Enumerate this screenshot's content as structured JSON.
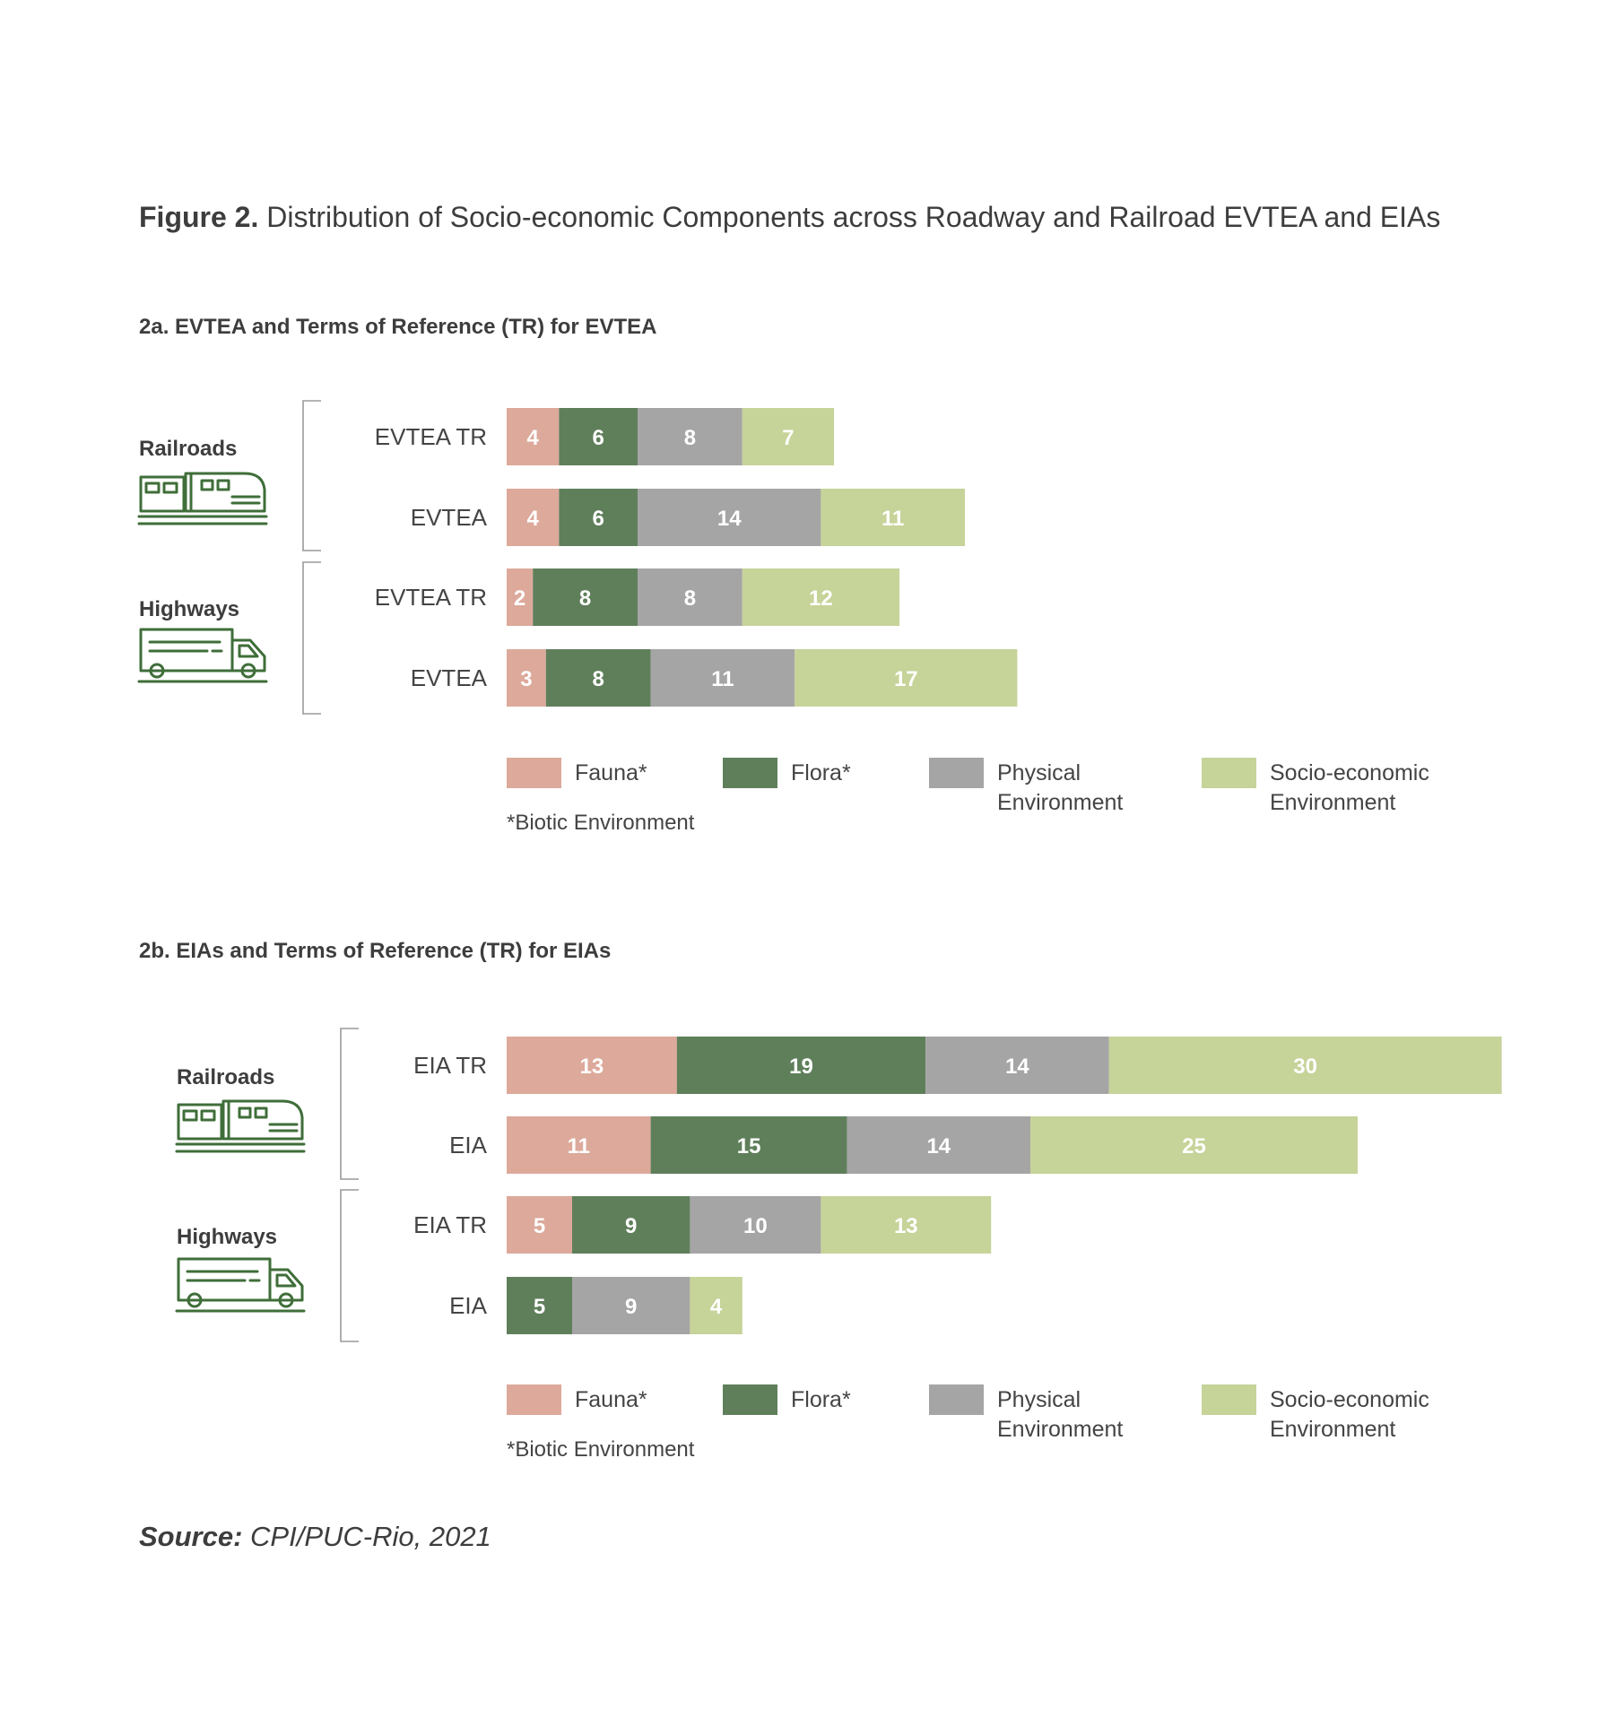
{
  "figure": {
    "title_bold": "Figure 2.",
    "title_rest": " Distribution of Socio-economic Components across Roadway and Railroad EVTEA and EIAs",
    "source_bold": "Source:",
    "source_rest": " CPI/PUC-Rio, 2021"
  },
  "colors": {
    "fauna": "#dca99b",
    "flora": "#5f7f5b",
    "physical": "#a5a5a5",
    "socio": "#c6d399"
  },
  "legend": {
    "items": [
      {
        "key": "fauna",
        "lines": [
          "Fauna*"
        ]
      },
      {
        "key": "flora",
        "lines": [
          "Flora*"
        ]
      },
      {
        "key": "physical",
        "lines": [
          "Physical",
          "Environment"
        ]
      },
      {
        "key": "socio",
        "lines": [
          "Socio-economic",
          "Environment"
        ]
      }
    ],
    "note": "*Biotic Environment"
  },
  "chart_data": [
    {
      "type": "bar",
      "orientation": "horizontal",
      "stacked": true,
      "title": "2a. EVTEA and Terms of Reference (TR) for EVTEA",
      "groups": [
        {
          "name": "Railroads",
          "icon": "train-icon",
          "categories": [
            "EVTEA TR",
            "EVTEA"
          ]
        },
        {
          "name": "Highways",
          "icon": "truck-icon",
          "categories": [
            "EVTEA TR",
            "EVTEA"
          ]
        }
      ],
      "categories": [
        "Railroads – EVTEA TR",
        "Railroads – EVTEA",
        "Highways – EVTEA TR",
        "Highways – EVTEA"
      ],
      "series": [
        {
          "name": "Fauna*",
          "key": "fauna",
          "values": [
            4,
            4,
            2,
            3
          ]
        },
        {
          "name": "Flora*",
          "key": "flora",
          "values": [
            6,
            6,
            8,
            8
          ]
        },
        {
          "name": "Physical Environment",
          "key": "physical",
          "values": [
            8,
            14,
            8,
            11
          ]
        },
        {
          "name": "Socio-economic Environment",
          "key": "socio",
          "values": [
            7,
            11,
            12,
            17
          ]
        }
      ]
    },
    {
      "type": "bar",
      "orientation": "horizontal",
      "stacked": true,
      "title": "2b. EIAs and Terms of Reference (TR) for EIAs",
      "groups": [
        {
          "name": "Railroads",
          "icon": "train-icon",
          "categories": [
            "EIA TR",
            "EIA"
          ]
        },
        {
          "name": "Highways",
          "icon": "truck-icon",
          "categories": [
            "EIA TR",
            "EIA"
          ]
        }
      ],
      "categories": [
        "Railroads – EIA TR",
        "Railroads – EIA",
        "Highways – EIA TR",
        "Highways – EIA"
      ],
      "series": [
        {
          "name": "Fauna*",
          "key": "fauna",
          "values": [
            13,
            11,
            5,
            0
          ]
        },
        {
          "name": "Flora*",
          "key": "flora",
          "values": [
            19,
            15,
            9,
            5
          ]
        },
        {
          "name": "Physical Environment",
          "key": "physical",
          "values": [
            14,
            14,
            10,
            9
          ]
        },
        {
          "name": "Socio-economic Environment",
          "key": "socio",
          "values": [
            30,
            25,
            13,
            4
          ]
        }
      ]
    }
  ]
}
